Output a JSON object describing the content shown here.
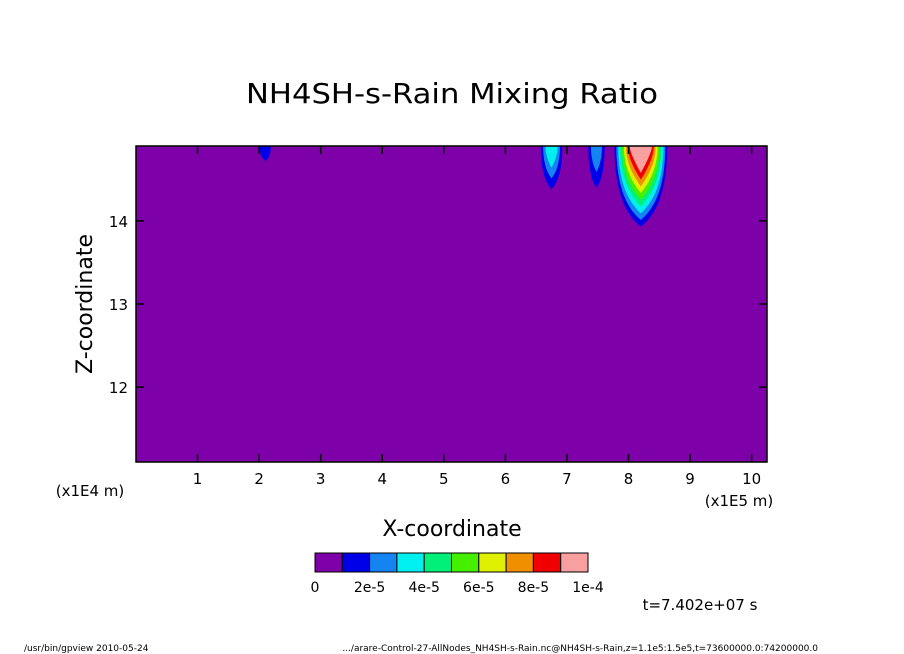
{
  "chart_data": {
    "type": "heatmap",
    "title": "NH4SH-s-Rain Mixing Ratio",
    "xlabel": "X-coordinate",
    "ylabel": "Z-coordinate",
    "x_unit_left": "(x1E4 m)",
    "x_unit_right": "(x1E5 m)",
    "xlim": [
      0,
      10.25
    ],
    "ylim": [
      11.1,
      14.9
    ],
    "x_ticks": [
      1,
      2,
      3,
      4,
      5,
      6,
      7,
      8,
      9,
      10
    ],
    "y_ticks": [
      12,
      13,
      14
    ],
    "grid": false,
    "colorbar": {
      "levels": [
        0,
        1e-05,
        2e-05,
        3e-05,
        4e-05,
        5e-05,
        6e-05,
        7e-05,
        8e-05,
        9e-05,
        0.0001
      ],
      "colors": [
        "#7e00a8",
        "#0000e8",
        "#1485f0",
        "#00f0f0",
        "#00f07a",
        "#44f000",
        "#e0f000",
        "#f09000",
        "#f00000",
        "#f8a0a0"
      ],
      "tick_labels": [
        "0",
        "2e-5",
        "4e-5",
        "6e-5",
        "8e-5",
        "1e-4"
      ]
    },
    "features": [
      {
        "x_center": 2.1,
        "z_bottom": 14.72,
        "max_level": 1
      },
      {
        "x_center": 6.75,
        "z_bottom": 14.38,
        "max_level": 3
      },
      {
        "x_center": 7.48,
        "z_bottom": 14.4,
        "max_level": 2
      },
      {
        "x_center": 8.2,
        "z_bottom": 13.93,
        "max_level": 9
      }
    ],
    "time_label": "t=7.402e+07 s"
  },
  "footer": {
    "left": "/usr/bin/gpview  2010-05-24",
    "right": ".../arare-Control-27-AllNodes_NH4SH-s-Rain.nc@NH4SH-s-Rain,z=1.1e5:1.5e5,t=73600000.0:74200000.0"
  }
}
